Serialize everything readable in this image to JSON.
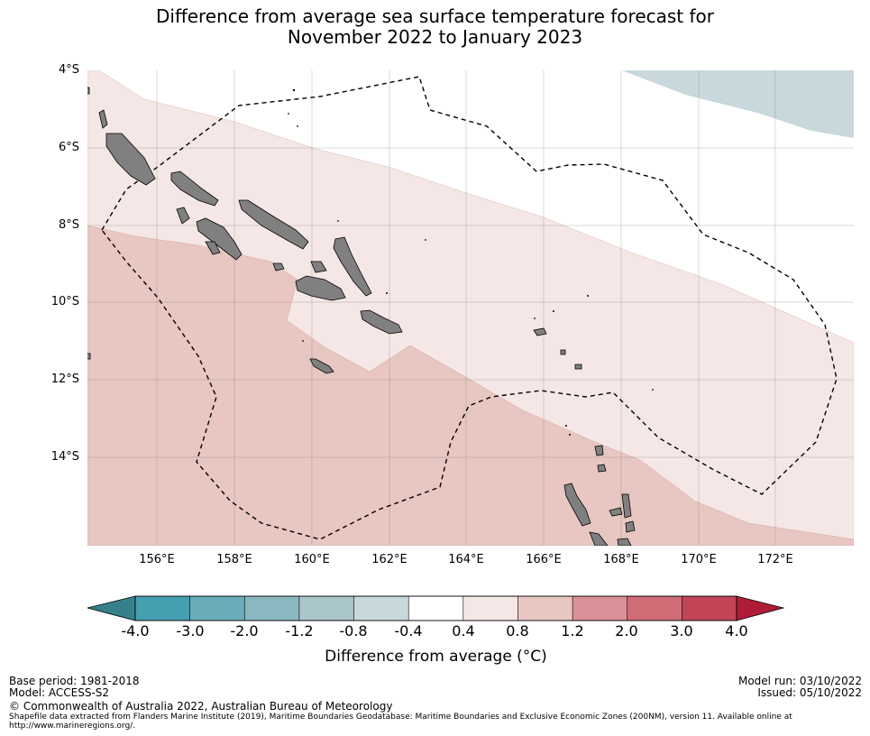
{
  "title_line1": "Difference from average sea surface temperature forecast for",
  "title_line2": "November 2022 to January 2023",
  "y_ticks": [
    "4°S",
    "6°S",
    "8°S",
    "10°S",
    "12°S",
    "14°S"
  ],
  "x_ticks": [
    "156°E",
    "158°E",
    "160°E",
    "162°E",
    "164°E",
    "166°E",
    "168°E",
    "170°E",
    "172°E"
  ],
  "colorbar": {
    "labels": [
      "-4.0",
      "-3.0",
      "-2.0",
      "-1.2",
      "-0.8",
      "-0.4",
      "0.4",
      "0.8",
      "1.2",
      "2.0",
      "3.0",
      "4.0"
    ],
    "colors": [
      "#44a0b0",
      "#6aacb9",
      "#8bb8c0",
      "#a9c5ca",
      "#c8d8dc",
      "#ffffff",
      "#f5e7e5",
      "#e8c6c1",
      "#d99096",
      "#cf6c76",
      "#c24557"
    ],
    "extend_low_color": "#35808a",
    "extend_high_color": "#b01c37",
    "title": "Difference from average (°C)"
  },
  "footer": {
    "base_period": "Base period: 1981-2018",
    "model": "Model: ACCESS-S2",
    "model_run": "Model run: 03/10/2022",
    "issued": "Issued: 05/10/2022",
    "copyright": "© Commonwealth of Australia 2022, Australian Bureau of Meteorology",
    "shapefile_note": "Shapefile data extracted from Flanders Marine Institute (2019), Maritime Boundaries Geodatabase: Maritime Boundaries and Exclusive Economic Zones (200NM), version 11. Available online at http://www.marineregions.org/."
  },
  "map_colors": {
    "light_warm": "#f5e7e5",
    "warm": "#e8c6c1",
    "cool": "#c8d8dc",
    "land": "#808080"
  }
}
